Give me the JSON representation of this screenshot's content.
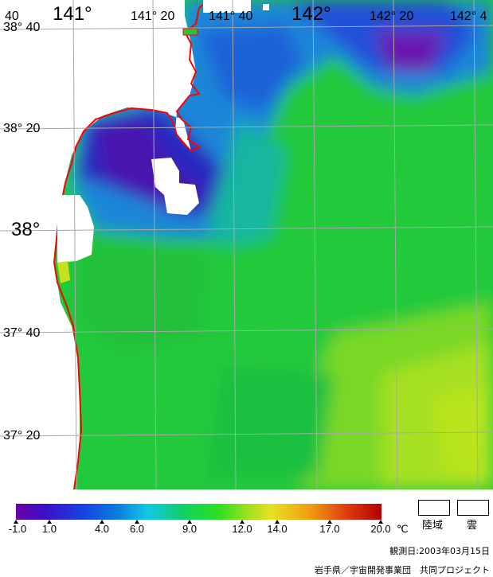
{
  "map": {
    "longitude_labels": [
      "141°",
      "141° 20",
      "141° 40",
      "142°",
      "142° 20",
      "142° 4"
    ],
    "latitude_labels": [
      "38° 40",
      "38° 20",
      "38°",
      "37° 40",
      "37° 20"
    ],
    "corner_label": "40",
    "colors": {
      "sea_base": "#22c93a",
      "coastline": "#ff0000",
      "land_cloud": "#ffffff",
      "grid": "#b0b0b0"
    }
  },
  "legend": {
    "ticks": [
      "-1.0",
      "1.0",
      "4.0",
      "6.0",
      "9.0",
      "12.0",
      "14.0",
      "17.0",
      "20.0"
    ],
    "unit": "℃",
    "land_label": "陸域",
    "cloud_label": "雲"
  },
  "footer": {
    "observation_date": "観測日:2003年03月15日",
    "credit": "岩手県／宇宙開発事業団　共同プロジェクト"
  }
}
